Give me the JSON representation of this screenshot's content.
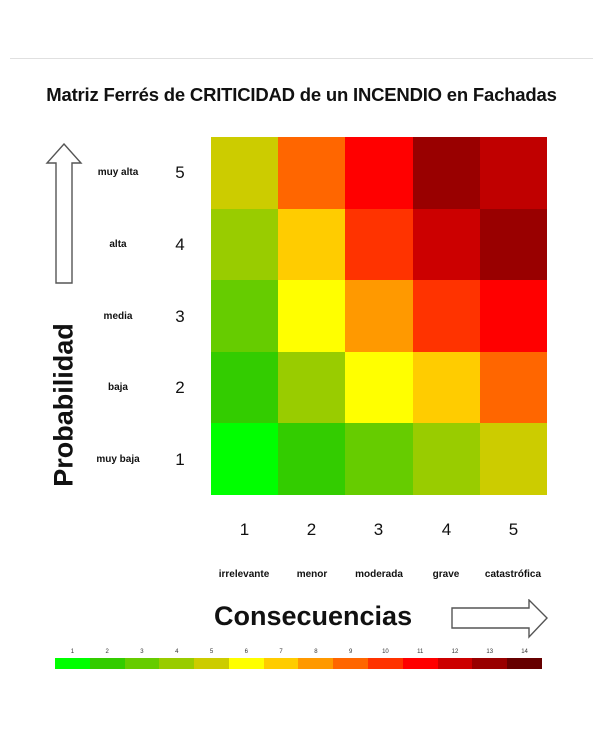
{
  "title": "Matriz Ferrés de CRITICIDAD de un INCENDIO en Fachadas",
  "y_axis": {
    "label": "Probabilidad",
    "levels": [
      {
        "value": "5",
        "label": "muy alta"
      },
      {
        "value": "4",
        "label": "alta"
      },
      {
        "value": "3",
        "label": "media"
      },
      {
        "value": "2",
        "label": "baja"
      },
      {
        "value": "1",
        "label": "muy baja"
      }
    ],
    "arrow_icon": "arrow-up-outline"
  },
  "x_axis": {
    "label": "Consecuencias",
    "levels": [
      {
        "value": "1",
        "label": "irrelevante"
      },
      {
        "value": "2",
        "label": "menor"
      },
      {
        "value": "3",
        "label": "moderada"
      },
      {
        "value": "4",
        "label": "grave"
      },
      {
        "value": "5",
        "label": "catastrófica"
      }
    ],
    "arrow_icon": "arrow-right-outline"
  },
  "legend": {
    "values": [
      "1",
      "2",
      "3",
      "4",
      "5",
      "6",
      "7",
      "8",
      "9",
      "10",
      "11",
      "12",
      "13",
      "14"
    ],
    "colors": [
      "#00ff00",
      "#33cc00",
      "#66cc00",
      "#99cc00",
      "#cccc00",
      "#ffff00",
      "#ffcc00",
      "#ff9900",
      "#ff6600",
      "#ff3300",
      "#ff0000",
      "#cc0000",
      "#990000",
      "#660000"
    ]
  },
  "chart_data": {
    "type": "heatmap",
    "title": "Matriz Ferrés de CRITICIDAD de un INCENDIO en Fachadas",
    "xlabel": "Consecuencias",
    "ylabel": "Probabilidad",
    "x_categories": [
      "1 irrelevante",
      "2 menor",
      "3 moderada",
      "4 grave",
      "5 catastrófica"
    ],
    "y_categories": [
      "5 muy alta",
      "4 alta",
      "3 media",
      "2 baja",
      "1 muy baja"
    ],
    "rows_top_to_bottom": [
      {
        "probability": 5,
        "colors": [
          "#cccc00",
          "#ff6600",
          "#ff0000",
          "#990000",
          "#c00000"
        ],
        "criticality": [
          5,
          9,
          11,
          13,
          12
        ]
      },
      {
        "probability": 4,
        "colors": [
          "#99cc00",
          "#ffcc00",
          "#ff3300",
          "#cc0000",
          "#990000"
        ],
        "criticality": [
          4,
          7,
          10,
          12,
          13
        ]
      },
      {
        "probability": 3,
        "colors": [
          "#66cc00",
          "#ffff00",
          "#ff9900",
          "#ff3300",
          "#ff0000"
        ],
        "criticality": [
          3,
          6,
          8,
          10,
          11
        ]
      },
      {
        "probability": 2,
        "colors": [
          "#33cc00",
          "#99cc00",
          "#ffff00",
          "#ffcc00",
          "#ff6600"
        ],
        "criticality": [
          2,
          4,
          6,
          7,
          9
        ]
      },
      {
        "probability": 1,
        "colors": [
          "#00ff00",
          "#33cc00",
          "#66cc00",
          "#99cc00",
          "#cccc00"
        ],
        "criticality": [
          1,
          2,
          3,
          4,
          5
        ]
      }
    ],
    "legend": {
      "values": [
        1,
        2,
        3,
        4,
        5,
        6,
        7,
        8,
        9,
        10,
        11,
        12,
        13,
        14
      ],
      "colors": [
        "#00ff00",
        "#33cc00",
        "#66cc00",
        "#99cc00",
        "#cccc00",
        "#ffff00",
        "#ffcc00",
        "#ff9900",
        "#ff6600",
        "#ff3300",
        "#ff0000",
        "#cc0000",
        "#990000",
        "#660000"
      ],
      "position": "bottom"
    },
    "grid": false
  }
}
